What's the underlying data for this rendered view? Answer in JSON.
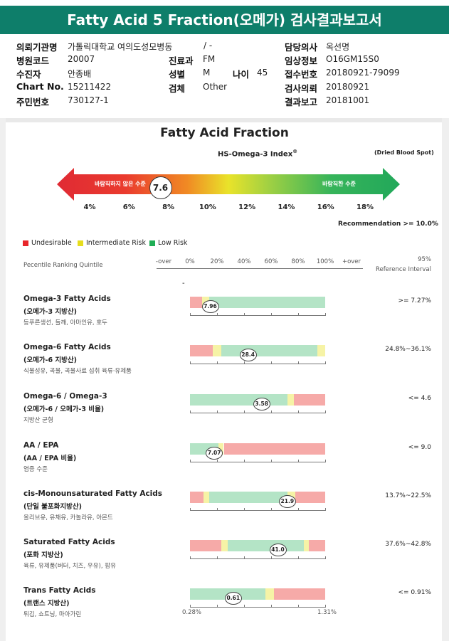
{
  "report_title": "Fatty Acid 5 Fraction(오메가) 검사결과보고서",
  "info": [
    {
      "label": "의뢰기관명",
      "value": "가톨릭대학교 여의도성모병동"
    },
    {
      "label": "병원코드",
      "value": "20007"
    },
    {
      "label": "수진자",
      "value": "안종배"
    },
    {
      "label": "Chart No.",
      "value": "15211422"
    },
    {
      "label": "주민번호",
      "value": "730127-1"
    },
    {
      "label": "진료과",
      "value": "FM"
    },
    {
      "label": "성별",
      "value": "M"
    },
    {
      "label": "나이",
      "value": "45"
    },
    {
      "label": "검체",
      "value": "Other"
    },
    {
      "label": "담당의사",
      "value": "옥선명"
    },
    {
      "label": "임상정보",
      "value": "O16GM15S0"
    },
    {
      "label": "접수번호",
      "value": "20180921-79099"
    },
    {
      "label": "검사의뢰",
      "value": "20180921"
    },
    {
      "label": "결과보고",
      "value": "20181001"
    }
  ],
  "slash": "/ -",
  "section_title": "Fatty Acid Fraction",
  "index_title": "HS-Omega-3 Index",
  "index_sup": "®",
  "dried": "(Dried Blood Spot)",
  "arrow_left_label": "바람직하지 않은 수준",
  "arrow_right_label": "바람직한 수준",
  "index_value": "7.6",
  "index_value_num": 7.6,
  "index_ticks": [
    "4%",
    "6%",
    "8%",
    "10%",
    "12%",
    "14%",
    "16%",
    "18%"
  ],
  "recommendation": "Recommendation  >= 10.0%",
  "legend": [
    {
      "label": "Undesirable",
      "color": "#e8262a"
    },
    {
      "label": "Intermediate Risk",
      "color": "#e6dd1d"
    },
    {
      "label": "Low Risk",
      "color": "#1fae55"
    }
  ],
  "percentile_header": "Pecentile Ranking Quintile",
  "scale_labels": [
    "-over",
    "0%",
    "20%",
    "40%",
    "60%",
    "80%",
    "100%",
    "+over"
  ],
  "ref_header_1": "95%",
  "ref_header_2": "Reference Interval",
  "dash": "-",
  "colors": {
    "red_bar": "#f6aaa8",
    "yellow_bar": "#f6f3a6",
    "green_bar": "#b4e4c6",
    "teal": "#0e7e6a"
  },
  "rows": [
    {
      "title": "Omega-3 Fatty Acids",
      "sub": "(오메가-3 지방산)",
      "foods": "등푸른생선, 들깨, 아마인유, 호두",
      "ref": ">= 7.27%",
      "value": "7.96",
      "marker": 0.15,
      "segments": [
        {
          "c": "red",
          "a": 0,
          "b": 0.09
        },
        {
          "c": "yellow",
          "a": 0.09,
          "b": 0.14
        },
        {
          "c": "green",
          "a": 0.14,
          "b": 1
        }
      ]
    },
    {
      "title": "Omega-6 Fatty Acids",
      "sub": "(오메가-6 지방산)",
      "foods": "식물성유, 곡물, 곡물사료 섭취 육류·유제품",
      "ref": "24.8%~36.1%",
      "value": "28.4",
      "marker": 0.43,
      "segments": [
        {
          "c": "red",
          "a": 0,
          "b": 0.17
        },
        {
          "c": "yellow",
          "a": 0.17,
          "b": 0.23
        },
        {
          "c": "green",
          "a": 0.23,
          "b": 0.94
        },
        {
          "c": "yellow",
          "a": 0.94,
          "b": 1
        }
      ]
    },
    {
      "title": "Omega-6 / Omega-3",
      "sub": "(오메가-6 / 오메가-3 비율)",
      "foods": "지방산 균형",
      "ref": "<= 4.6",
      "value": "3.58",
      "marker": 0.53,
      "segments": [
        {
          "c": "green",
          "a": 0,
          "b": 0.72
        },
        {
          "c": "yellow",
          "a": 0.72,
          "b": 0.77
        },
        {
          "c": "red",
          "a": 0.77,
          "b": 1
        }
      ]
    },
    {
      "title": "AA / EPA",
      "sub": "(AA / EPA 비율)",
      "foods": "염증 수준",
      "ref": "<= 9.0",
      "value": "7.07",
      "marker": 0.18,
      "segments": [
        {
          "c": "green",
          "a": 0,
          "b": 0.21
        },
        {
          "c": "yellow",
          "a": 0.21,
          "b": 0.25
        },
        {
          "c": "red",
          "a": 0.25,
          "b": 1
        }
      ]
    },
    {
      "title": "cis-Monounsaturated Fatty Acids",
      "sub": "(단일 불포화지방산)",
      "foods": "올리브유, 유채유, 카놀라유, 아몬드",
      "ref": "13.7%~22.5%",
      "value": "21.9",
      "marker": 0.72,
      "segments": [
        {
          "c": "red",
          "a": 0,
          "b": 0.1
        },
        {
          "c": "yellow",
          "a": 0.1,
          "b": 0.14
        },
        {
          "c": "green",
          "a": 0.14,
          "b": 0.72
        },
        {
          "c": "yellow",
          "a": 0.72,
          "b": 0.78
        },
        {
          "c": "red",
          "a": 0.78,
          "b": 1
        }
      ]
    },
    {
      "title": "Saturated Fatty Acids",
      "sub": "(포화 지방산)",
      "foods": "육류, 유제품(버터, 치즈, 우유), 팜유",
      "ref": "37.6%~42.8%",
      "value": "41.0",
      "marker": 0.65,
      "segments": [
        {
          "c": "red",
          "a": 0,
          "b": 0.23
        },
        {
          "c": "yellow",
          "a": 0.23,
          "b": 0.28
        },
        {
          "c": "green",
          "a": 0.28,
          "b": 0.84
        },
        {
          "c": "yellow",
          "a": 0.84,
          "b": 0.88
        },
        {
          "c": "red",
          "a": 0.88,
          "b": 1
        }
      ]
    },
    {
      "title": "Trans Fatty Acids",
      "sub": "(트랜스 지방산)",
      "foods": "튀김, 쇼트닝, 마아가린",
      "ref": "<= 0.91%",
      "value": "0.61",
      "marker": 0.32,
      "segments": [
        {
          "c": "green",
          "a": 0,
          "b": 0.56
        },
        {
          "c": "yellow",
          "a": 0.56,
          "b": 0.62
        },
        {
          "c": "red",
          "a": 0.62,
          "b": 1
        }
      ],
      "scale_min": "0.28%",
      "scale_max": "1.31%"
    }
  ]
}
